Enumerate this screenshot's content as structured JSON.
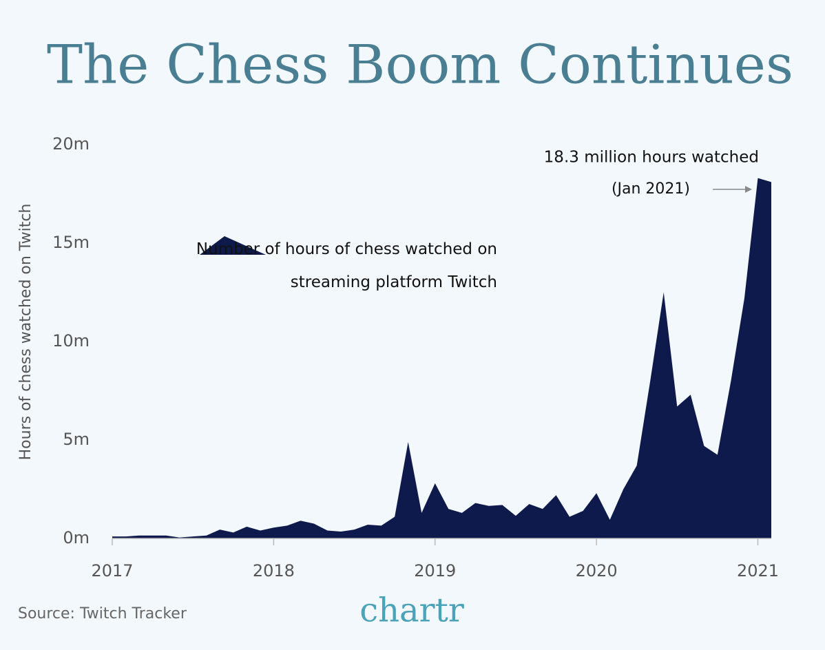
{
  "chart_data": {
    "type": "area",
    "title": "The Chess Boom Continues",
    "y_axis_label": "Hours of chess watched on Twitch",
    "annotation": "18.3 million hours watched",
    "annotation_sub": "(Jan 2021)",
    "source": "Source: Twitch Tracker",
    "logo": "chartr",
    "x": [
      2017,
      2017.0833,
      2017.1667,
      2017.25,
      2017.3333,
      2017.4167,
      2017.5,
      2017.5833,
      2017.6667,
      2017.75,
      2017.8333,
      2017.9167,
      2018,
      2018.0833,
      2018.1667,
      2018.25,
      2018.3333,
      2018.4167,
      2018.5,
      2018.5833,
      2018.6667,
      2018.75,
      2018.8333,
      2018.9167,
      2019,
      2019.0833,
      2019.1667,
      2019.25,
      2019.3333,
      2019.4167,
      2019.5,
      2019.5833,
      2019.6667,
      2019.75,
      2019.8333,
      2019.9167,
      2020,
      2020.0833,
      2020.1667,
      2020.25,
      2020.3333,
      2020.4167,
      2020.5,
      2020.5833,
      2020.6667,
      2020.75,
      2020.8333,
      2020.9167,
      2021,
      2021.0833
    ],
    "series": [
      {
        "name": "Number of hours of chess watched on streaming platform Twitch",
        "color": "#0e1a4b",
        "values": [
          0.1,
          0.1,
          0.15,
          0.15,
          0.15,
          0.05,
          0.1,
          0.15,
          0.45,
          0.3,
          0.6,
          0.4,
          0.55,
          0.65,
          0.9,
          0.75,
          0.4,
          0.35,
          0.45,
          0.7,
          0.65,
          1.1,
          4.9,
          1.3,
          2.8,
          1.5,
          1.3,
          1.8,
          1.65,
          1.7,
          1.15,
          1.75,
          1.5,
          2.2,
          1.1,
          1.4,
          2.3,
          0.95,
          2.5,
          3.7,
          8,
          12.5,
          6.7,
          7.3,
          4.7,
          4.25,
          8,
          12.2,
          18.3,
          18.1
        ]
      }
    ],
    "xlim": [
      2017,
      2021.0833
    ],
    "xticks": [
      2017,
      2018,
      2019,
      2020,
      2021
    ],
    "ylim": [
      0,
      20
    ],
    "yticks": [
      {
        "value": 0,
        "label": "0m"
      },
      {
        "value": 5,
        "label": "5m"
      },
      {
        "value": 10,
        "label": "10m"
      },
      {
        "value": 15,
        "label": "15m"
      },
      {
        "value": 20,
        "label": "20m"
      }
    ],
    "grid": false
  }
}
